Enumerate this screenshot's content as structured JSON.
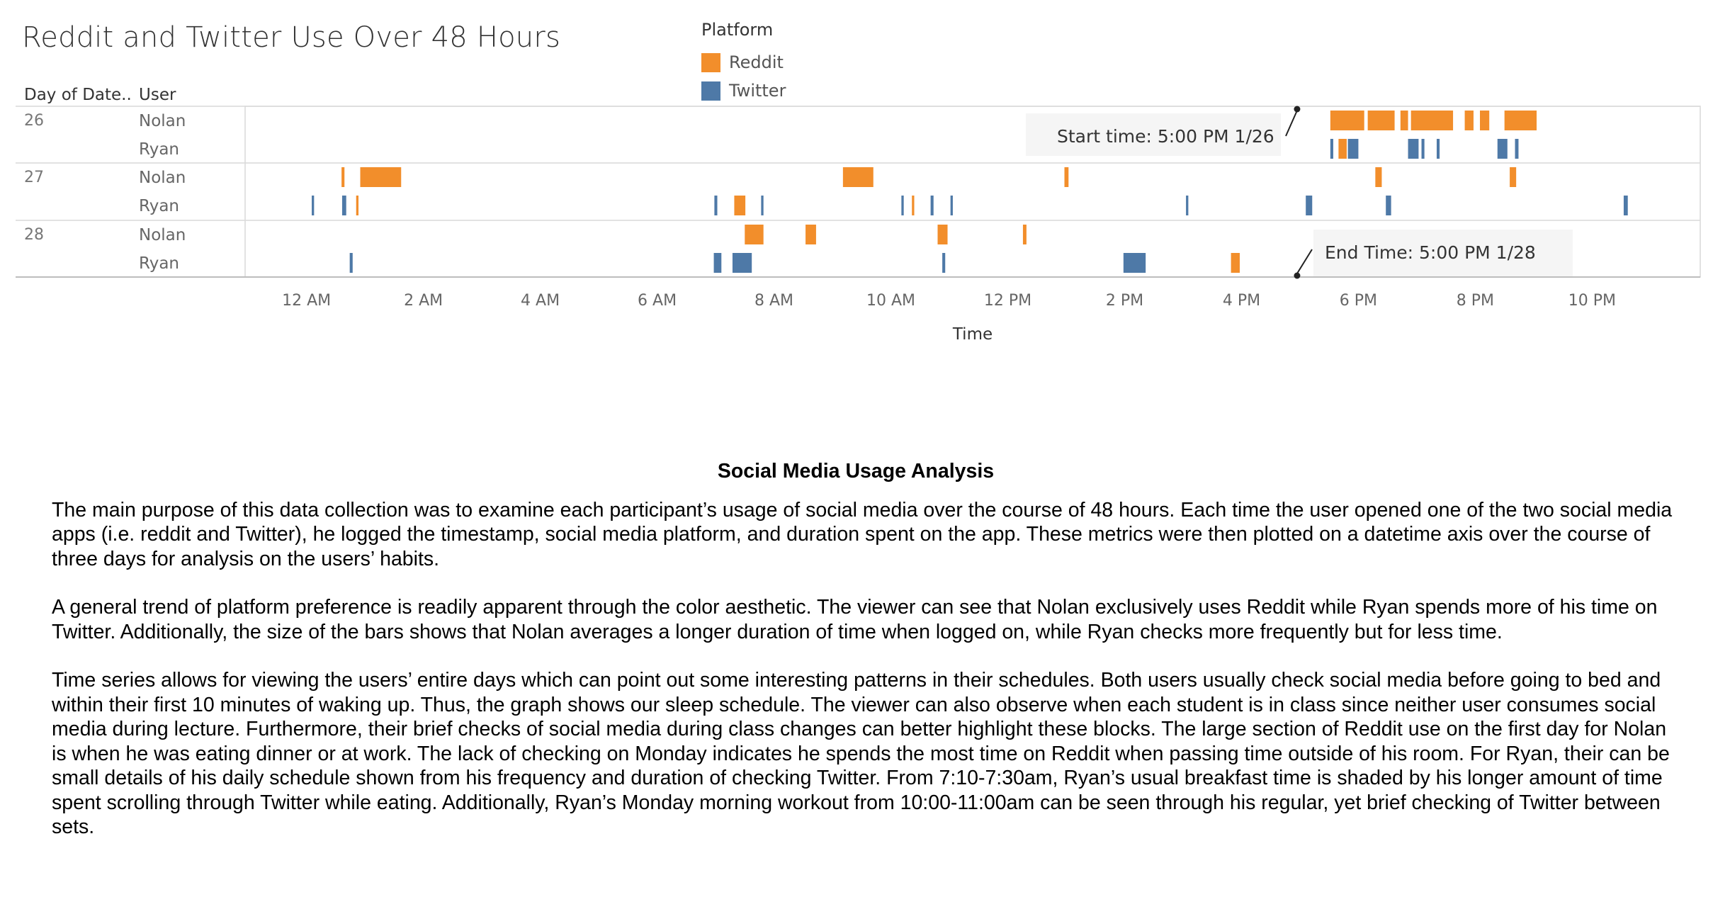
{
  "chart_data": {
    "type": "gantt",
    "title": "Reddit and Twitter Use Over 48 Hours",
    "xlabel": "Time",
    "row_headers": [
      "Day of Date..",
      "User"
    ],
    "x_tick_labels": [
      "12 AM",
      "2 AM",
      "4 AM",
      "6 AM",
      "8 AM",
      "10 AM",
      "12 PM",
      "2 PM",
      "4 PM",
      "6 PM",
      "8 PM",
      "10 PM"
    ],
    "x_ticks_hours": [
      0,
      2,
      4,
      6,
      8,
      10,
      12,
      14,
      16,
      18,
      20,
      22
    ],
    "x_range_hours": [
      -1.05,
      23.85
    ],
    "legend": {
      "title": "Platform",
      "placement": "top",
      "items": [
        {
          "name": "Reddit",
          "color": "#F28E2B"
        },
        {
          "name": "Twitter",
          "color": "#4E79A7"
        }
      ]
    },
    "days": [
      {
        "day": "26",
        "users": [
          {
            "user": "Nolan",
            "sessions": [
              {
                "platform": "Reddit",
                "start": 17.52,
                "end": 18.1
              },
              {
                "platform": "Reddit",
                "start": 18.16,
                "end": 18.62
              },
              {
                "platform": "Reddit",
                "start": 18.72,
                "end": 18.85
              },
              {
                "platform": "Reddit",
                "start": 18.9,
                "end": 19.62
              },
              {
                "platform": "Reddit",
                "start": 19.82,
                "end": 19.97
              },
              {
                "platform": "Reddit",
                "start": 20.08,
                "end": 20.24
              },
              {
                "platform": "Reddit",
                "start": 20.5,
                "end": 21.05
              }
            ]
          },
          {
            "user": "Ryan",
            "sessions": [
              {
                "platform": "Twitter",
                "start": 17.52,
                "end": 17.57
              },
              {
                "platform": "Reddit",
                "start": 17.66,
                "end": 17.8
              },
              {
                "platform": "Twitter",
                "start": 17.82,
                "end": 18.0
              },
              {
                "platform": "Twitter",
                "start": 18.85,
                "end": 19.03
              },
              {
                "platform": "Twitter",
                "start": 19.08,
                "end": 19.13
              },
              {
                "platform": "Twitter",
                "start": 19.34,
                "end": 19.39
              },
              {
                "platform": "Twitter",
                "start": 20.38,
                "end": 20.55
              },
              {
                "platform": "Twitter",
                "start": 20.68,
                "end": 20.74
              }
            ]
          }
        ]
      },
      {
        "day": "27",
        "users": [
          {
            "user": "Nolan",
            "sessions": [
              {
                "platform": "Reddit",
                "start": 0.6,
                "end": 0.65
              },
              {
                "platform": "Reddit",
                "start": 0.92,
                "end": 1.62
              },
              {
                "platform": "Reddit",
                "start": 9.18,
                "end": 9.7
              },
              {
                "platform": "Reddit",
                "start": 12.97,
                "end": 13.04
              },
              {
                "platform": "Reddit",
                "start": 18.29,
                "end": 18.4
              },
              {
                "platform": "Reddit",
                "start": 20.59,
                "end": 20.7
              }
            ]
          },
          {
            "user": "Ryan",
            "sessions": [
              {
                "platform": "Twitter",
                "start": 0.09,
                "end": 0.13
              },
              {
                "platform": "Twitter",
                "start": 0.61,
                "end": 0.68
              },
              {
                "platform": "Reddit",
                "start": 0.85,
                "end": 0.89
              },
              {
                "platform": "Twitter",
                "start": 6.98,
                "end": 7.03
              },
              {
                "platform": "Reddit",
                "start": 7.32,
                "end": 7.51
              },
              {
                "platform": "Twitter",
                "start": 7.78,
                "end": 7.82
              },
              {
                "platform": "Twitter",
                "start": 10.18,
                "end": 10.22
              },
              {
                "platform": "Reddit",
                "start": 10.36,
                "end": 10.4
              },
              {
                "platform": "Twitter",
                "start": 10.68,
                "end": 10.73
              },
              {
                "platform": "Twitter",
                "start": 11.02,
                "end": 11.06
              },
              {
                "platform": "Twitter",
                "start": 15.05,
                "end": 15.09
              },
              {
                "platform": "Twitter",
                "start": 17.1,
                "end": 17.21
              },
              {
                "platform": "Twitter",
                "start": 18.47,
                "end": 18.56
              },
              {
                "platform": "Twitter",
                "start": 22.54,
                "end": 22.61
              }
            ]
          }
        ]
      },
      {
        "day": "28",
        "users": [
          {
            "user": "Nolan",
            "sessions": [
              {
                "platform": "Reddit",
                "start": 7.5,
                "end": 7.82
              },
              {
                "platform": "Reddit",
                "start": 8.54,
                "end": 8.72
              },
              {
                "platform": "Reddit",
                "start": 10.8,
                "end": 10.97
              },
              {
                "platform": "Reddit",
                "start": 12.26,
                "end": 12.32
              }
            ]
          },
          {
            "user": "Ryan",
            "sessions": [
              {
                "platform": "Twitter",
                "start": 0.74,
                "end": 0.79
              },
              {
                "platform": "Twitter",
                "start": 6.97,
                "end": 7.1
              },
              {
                "platform": "Twitter",
                "start": 7.29,
                "end": 7.62
              },
              {
                "platform": "Twitter",
                "start": 10.88,
                "end": 10.93
              },
              {
                "platform": "Twitter",
                "start": 13.98,
                "end": 14.36
              },
              {
                "platform": "Reddit",
                "start": 15.82,
                "end": 15.97
              }
            ]
          }
        ]
      }
    ],
    "annotations": [
      {
        "text": "Start time: 5:00 PM 1/26",
        "day": "26",
        "time": 17.0
      },
      {
        "text": "End Time: 5:00 PM 1/28",
        "day": "28",
        "time": 17.0
      }
    ]
  },
  "analysis": {
    "title": "Social Media Usage Analysis",
    "paragraphs": [
      "The main purpose of this data collection was to examine each participant’s usage of social media over the course of 48 hours.  Each time the user opened one of the two social media apps (i.e. reddit and Twitter), he logged the timestamp, social media platform, and duration spent on the app.  These metrics were then plotted on a datetime axis over the course of three days for analysis on the users’ habits.",
      "A general trend of platform preference is readily apparent through the color aesthetic.  The viewer can see that Nolan exclusively uses Reddit while Ryan spends more of his time on Twitter.  Additionally, the size of the bars shows that Nolan averages a longer duration of time when logged on, while Ryan checks more frequently but for less time.",
      "Time series allows for viewing the users’ entire days which can point out some interesting patterns in their schedules.  Both users usually check social media before going to bed and within their first 10 minutes of waking up. Thus, the graph shows our sleep schedule.  The viewer can also observe when each student is in class since neither user consumes social media during lecture.  Furthermore, their brief checks of social media during class changes can better highlight these blocks.  The large section of Reddit use on the first day for Nolan is when he was eating dinner or at work. The lack of checking on Monday indicates he spends the most time on Reddit when passing time outside of his room.  For Ryan, their can be small details of his daily schedule shown from his frequency and duration of checking Twitter.  From 7:10-7:30am, Ryan’s usual breakfast time is shaded by his longer amount of time spent scrolling through Twitter while eating.  Additionally, Ryan’s Monday morning workout from 10:00-11:00am can be seen through his regular, yet brief checking of Twitter between sets."
    ]
  }
}
